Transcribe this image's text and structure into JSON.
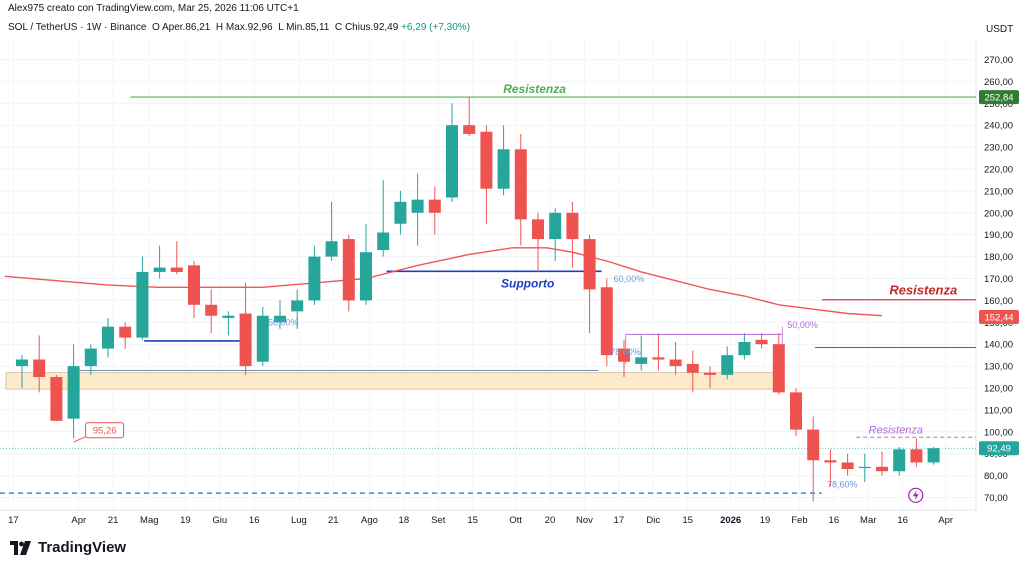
{
  "header": {
    "creator": "Alex975 creato con TradingView.com, Mar 25, 2026 11:06 UTC+1",
    "symbol": "SOL / TetherUS · 1W · Binance",
    "open_label": "O",
    "open": "Aper.86,21",
    "high_label": "H",
    "high": "Max.92,96",
    "low_label": "L",
    "low": "Min.85,11",
    "close_label": "C",
    "close": "Chius.92,49",
    "change": "+6,29 (+7,30%)"
  },
  "currency": "USDT",
  "brand": "TradingView",
  "colors": {
    "up": "#26a69a",
    "down": "#ef5350",
    "ma": "#f0555a",
    "support": "#1e3fbf",
    "resist_green": "#4caf50",
    "resist_red": "#e53945",
    "resist_purple": "#b36ad6",
    "zone_fill": "#fde9cc",
    "fib": "#6a9bd8",
    "dashed_blue": "#2196f3"
  },
  "chart_data": {
    "type": "candlestick",
    "interval": "1W",
    "ylim": [
      65,
      280
    ],
    "yticks": [
      70,
      80,
      90,
      100,
      110,
      120,
      130,
      140,
      150,
      160,
      170,
      180,
      190,
      200,
      210,
      220,
      230,
      240,
      250,
      260,
      270
    ],
    "x_tick_labels": [
      {
        "label": "17",
        "week": -0.5
      },
      {
        "label": "Apr",
        "week": 3.3
      },
      {
        "label": "21",
        "week": 5.3
      },
      {
        "label": "Mag",
        "week": 7.4
      },
      {
        "label": "19",
        "week": 9.5
      },
      {
        "label": "Giu",
        "week": 11.5
      },
      {
        "label": "16",
        "week": 13.5
      },
      {
        "label": "Lug",
        "week": 16.1
      },
      {
        "label": "21",
        "week": 18.1
      },
      {
        "label": "Ago",
        "week": 20.2
      },
      {
        "label": "18",
        "week": 22.2
      },
      {
        "label": "Set",
        "week": 24.2
      },
      {
        "label": "15",
        "week": 26.2
      },
      {
        "label": "Ott",
        "week": 28.7
      },
      {
        "label": "20",
        "week": 30.7
      },
      {
        "label": "Nov",
        "week": 32.7
      },
      {
        "label": "17",
        "week": 34.7
      },
      {
        "label": "Dic",
        "week": 36.7
      },
      {
        "label": "15",
        "week": 38.7
      },
      {
        "label": "2026",
        "week": 41.2,
        "bold": true
      },
      {
        "label": "19",
        "week": 43.2
      },
      {
        "label": "Feb",
        "week": 45.2
      },
      {
        "label": "16",
        "week": 47.2
      },
      {
        "label": "Mar",
        "week": 49.2
      },
      {
        "label": "16",
        "week": 51.2
      },
      {
        "label": "Apr",
        "week": 53.7
      }
    ],
    "candles": [
      {
        "o": 130,
        "h": 135,
        "l": 120,
        "c": 133
      },
      {
        "o": 133,
        "h": 144,
        "l": 118,
        "c": 125
      },
      {
        "o": 125,
        "h": 126,
        "l": 105,
        "c": 105
      },
      {
        "o": 106,
        "h": 140,
        "l": 97,
        "c": 130
      },
      {
        "o": 130,
        "h": 140,
        "l": 126,
        "c": 138
      },
      {
        "o": 138,
        "h": 152,
        "l": 134,
        "c": 148
      },
      {
        "o": 148,
        "h": 150,
        "l": 138,
        "c": 143
      },
      {
        "o": 143,
        "h": 180,
        "l": 142,
        "c": 173
      },
      {
        "o": 173,
        "h": 185,
        "l": 170,
        "c": 175
      },
      {
        "o": 175,
        "h": 187,
        "l": 172,
        "c": 173
      },
      {
        "o": 176,
        "h": 178,
        "l": 152,
        "c": 158
      },
      {
        "o": 158,
        "h": 165,
        "l": 145,
        "c": 153
      },
      {
        "o": 152,
        "h": 155,
        "l": 144,
        "c": 153
      },
      {
        "o": 154,
        "h": 168,
        "l": 126,
        "c": 130
      },
      {
        "o": 132,
        "h": 157,
        "l": 130,
        "c": 153
      },
      {
        "o": 150,
        "h": 160,
        "l": 147,
        "c": 153
      },
      {
        "o": 155,
        "h": 165,
        "l": 147,
        "c": 160
      },
      {
        "o": 160,
        "h": 185,
        "l": 158,
        "c": 180
      },
      {
        "o": 180,
        "h": 205,
        "l": 178,
        "c": 187
      },
      {
        "o": 188,
        "h": 190,
        "l": 155,
        "c": 160
      },
      {
        "o": 160,
        "h": 195,
        "l": 158,
        "c": 182
      },
      {
        "o": 183,
        "h": 215,
        "l": 180,
        "c": 191
      },
      {
        "o": 195,
        "h": 210,
        "l": 190,
        "c": 205
      },
      {
        "o": 200,
        "h": 218,
        "l": 185,
        "c": 206
      },
      {
        "o": 206,
        "h": 212,
        "l": 190,
        "c": 200
      },
      {
        "o": 207,
        "h": 250,
        "l": 205,
        "c": 240
      },
      {
        "o": 240,
        "h": 253,
        "l": 235,
        "c": 236
      },
      {
        "o": 237,
        "h": 240,
        "l": 195,
        "c": 211
      },
      {
        "o": 211,
        "h": 240,
        "l": 208,
        "c": 229
      },
      {
        "o": 229,
        "h": 236,
        "l": 185,
        "c": 197
      },
      {
        "o": 197,
        "h": 200,
        "l": 173,
        "c": 188
      },
      {
        "o": 188,
        "h": 202,
        "l": 178,
        "c": 200
      },
      {
        "o": 200,
        "h": 205,
        "l": 175,
        "c": 188
      },
      {
        "o": 188,
        "h": 190,
        "l": 145,
        "c": 165
      },
      {
        "o": 166,
        "h": 170,
        "l": 130,
        "c": 135
      },
      {
        "o": 138,
        "h": 142,
        "l": 125,
        "c": 132
      },
      {
        "o": 131,
        "h": 144,
        "l": 128,
        "c": 134
      },
      {
        "o": 134,
        "h": 145,
        "l": 128,
        "c": 133
      },
      {
        "o": 133,
        "h": 141,
        "l": 126,
        "c": 130
      },
      {
        "o": 131,
        "h": 137,
        "l": 118,
        "c": 127
      },
      {
        "o": 127,
        "h": 130,
        "l": 120,
        "c": 126
      },
      {
        "o": 126,
        "h": 139,
        "l": 124,
        "c": 135
      },
      {
        "o": 135,
        "h": 145,
        "l": 133,
        "c": 141
      },
      {
        "o": 142,
        "h": 145,
        "l": 138,
        "c": 140
      },
      {
        "o": 140,
        "h": 145,
        "l": 117,
        "c": 118
      },
      {
        "o": 118,
        "h": 120,
        "l": 98,
        "c": 101
      },
      {
        "o": 101,
        "h": 107,
        "l": 68,
        "c": 87
      },
      {
        "o": 87,
        "h": 92,
        "l": 75,
        "c": 86
      },
      {
        "o": 86,
        "h": 90,
        "l": 80,
        "c": 83
      },
      {
        "o": 84,
        "h": 90,
        "l": 77,
        "c": 84
      },
      {
        "o": 84,
        "h": 91,
        "l": 80,
        "c": 82
      },
      {
        "o": 82,
        "h": 93,
        "l": 80,
        "c": 92
      },
      {
        "o": 92,
        "h": 97,
        "l": 84,
        "c": 86
      },
      {
        "o": 86,
        "h": 93,
        "l": 85,
        "c": 92.5
      }
    ],
    "moving_average": {
      "name": "MA",
      "points": [
        [
          -1,
          171
        ],
        [
          2,
          169
        ],
        [
          5,
          167
        ],
        [
          8,
          166
        ],
        [
          11,
          166
        ],
        [
          14,
          166
        ],
        [
          17,
          168
        ],
        [
          20,
          170
        ],
        [
          23,
          176
        ],
        [
          26,
          181
        ],
        [
          28.5,
          184
        ],
        [
          30.5,
          184
        ],
        [
          32,
          182
        ],
        [
          34,
          178
        ],
        [
          36,
          173
        ],
        [
          38,
          169
        ],
        [
          40,
          165
        ],
        [
          42,
          162
        ],
        [
          44,
          158
        ],
        [
          46,
          156
        ],
        [
          48,
          154
        ],
        [
          50,
          153
        ]
      ]
    },
    "annotations": {
      "resistenza_top": {
        "label": "Resistenza",
        "value": 252.84,
        "price_label": "252,84"
      },
      "resistenza_mid": {
        "label": "Resistenza",
        "value": 160.3
      },
      "resistenza_low": {
        "label": "Resistenza",
        "value": 97.5
      },
      "supporto": {
        "label": "Supporto",
        "value": 173.3
      },
      "left_support_value": 141.5,
      "green_level": 138.5,
      "thin_level": 128,
      "zone": [
        119.5,
        127
      ],
      "dashed_blue_level": 72,
      "ma_price_label": "152,44",
      "ma_price_value": 152.44,
      "last_price_label": "92,49",
      "last_price_value": 92.49,
      "low_marker": "95,26",
      "fib_labels": [
        "50,00%",
        "60,00%",
        "78,60%",
        "50,00%",
        "78,60%"
      ]
    }
  }
}
